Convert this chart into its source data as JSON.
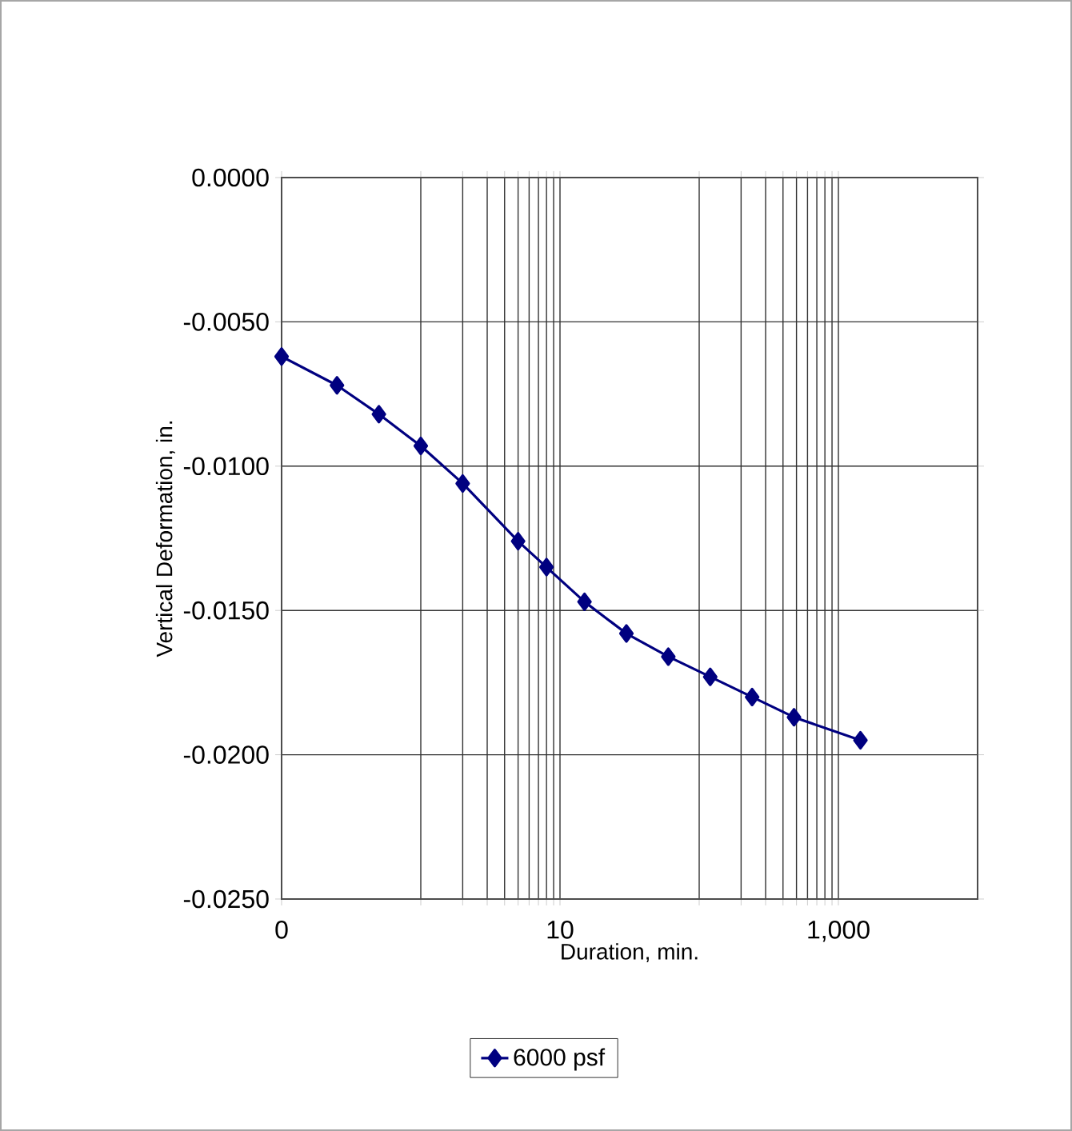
{
  "chart_data": {
    "type": "line",
    "xlabel": "Duration, min.",
    "ylabel": "Vertical Deformation, in.",
    "x": [
      0.1,
      0.25,
      0.5,
      1,
      2,
      5,
      8,
      15,
      30,
      60,
      120,
      240,
      480,
      1440
    ],
    "series": [
      {
        "name": "6000 psf",
        "color": "#000080",
        "values": [
          -0.0062,
          -0.0072,
          -0.0082,
          -0.0093,
          -0.0106,
          -0.0126,
          -0.0135,
          -0.0147,
          -0.0158,
          -0.0166,
          -0.0173,
          -0.018,
          -0.0187,
          -0.0195
        ]
      }
    ],
    "log": "x",
    "xlim": [
      0.1,
      10000
    ],
    "ylim": [
      -0.025,
      0
    ],
    "xticks": [
      {
        "value": 0.1,
        "label": "0"
      },
      {
        "value": 1,
        "label": null
      },
      {
        "value": 2,
        "label": null
      },
      {
        "value": 3,
        "label": null
      },
      {
        "value": 4,
        "label": null
      },
      {
        "value": 5,
        "label": null
      },
      {
        "value": 6,
        "label": null
      },
      {
        "value": 7,
        "label": null
      },
      {
        "value": 8,
        "label": null
      },
      {
        "value": 9,
        "label": null
      },
      {
        "value": 10,
        "label": "10"
      },
      {
        "value": 100,
        "label": null
      },
      {
        "value": 200,
        "label": null
      },
      {
        "value": 300,
        "label": null
      },
      {
        "value": 400,
        "label": null
      },
      {
        "value": 500,
        "label": null
      },
      {
        "value": 600,
        "label": null
      },
      {
        "value": 700,
        "label": null
      },
      {
        "value": 800,
        "label": null
      },
      {
        "value": 900,
        "label": null
      },
      {
        "value": 1000,
        "label": "1,000"
      }
    ],
    "yticks": [
      {
        "value": -0.025,
        "label": "-0.0250"
      },
      {
        "value": -0.02,
        "label": "-0.0200"
      },
      {
        "value": -0.015,
        "label": "-0.0150"
      },
      {
        "value": -0.01,
        "label": "-0.0100"
      },
      {
        "value": -0.005,
        "label": "-0.0050"
      },
      {
        "value": 0,
        "label": "0.0000"
      }
    ],
    "grid": true,
    "legend": "bottom",
    "marker": "diamond",
    "line_style": "solid"
  }
}
